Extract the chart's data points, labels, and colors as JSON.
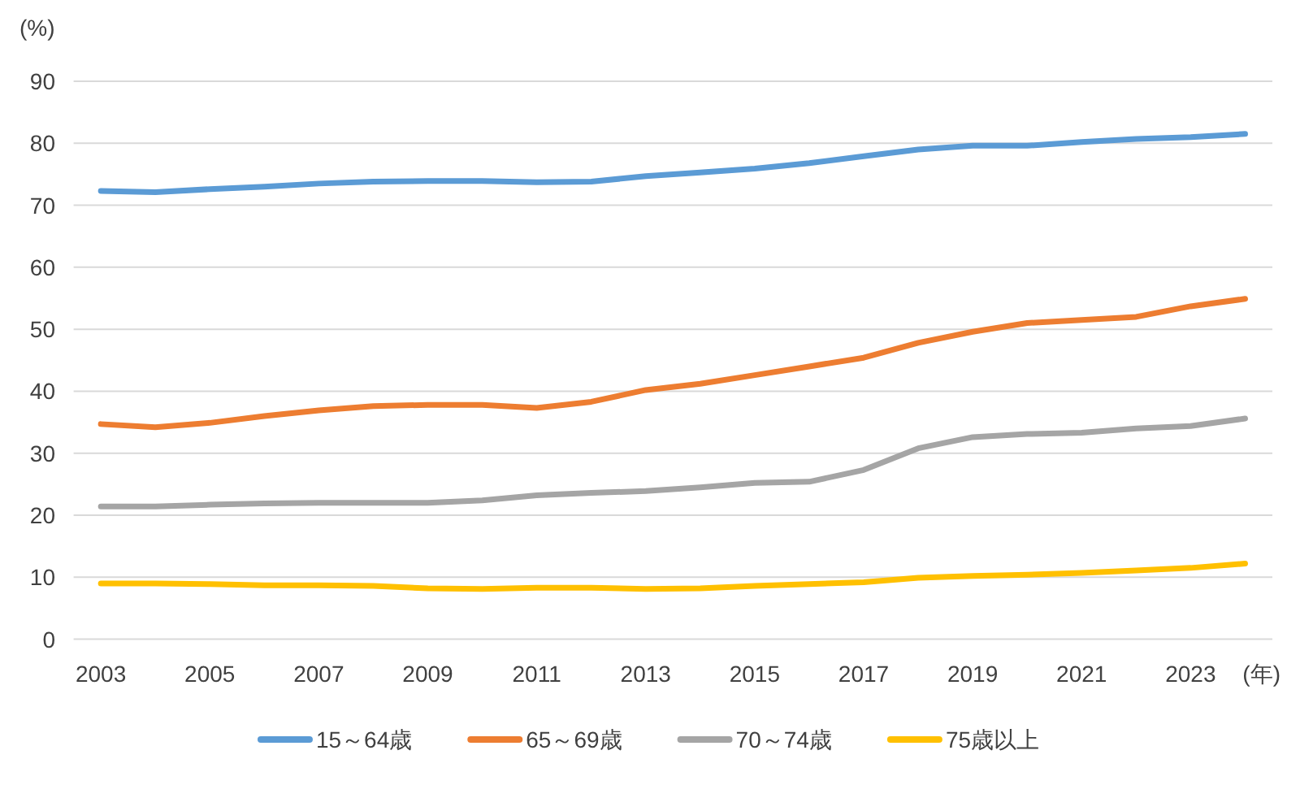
{
  "chart_data": {
    "type": "line",
    "ylabel": "(%)",
    "xlabel": "(年)",
    "categories": [
      "2003",
      null,
      "2005",
      null,
      "2007",
      null,
      "2009",
      null,
      "2011",
      null,
      "2013",
      null,
      "2015",
      null,
      "2017",
      null,
      "2019",
      null,
      "2021",
      null,
      "2023",
      null
    ],
    "ylim": [
      0,
      90
    ],
    "yticks": [
      0,
      10,
      20,
      30,
      40,
      50,
      60,
      70,
      80,
      90
    ],
    "grid": "y",
    "legend": "bottom",
    "marker": "none",
    "line_style": "solid",
    "series": [
      {
        "name": "15～64歳",
        "color": "#5b9bd5",
        "values": [
          72.3,
          72.1,
          72.6,
          73.0,
          73.5,
          73.8,
          73.9,
          73.9,
          73.7,
          73.8,
          74.7,
          75.3,
          75.9,
          76.8,
          77.9,
          79.0,
          79.6,
          79.6,
          80.2,
          80.7,
          81.0,
          81.5
        ]
      },
      {
        "name": "65～69歳",
        "color": "#ed7d31",
        "values": [
          34.7,
          34.2,
          34.9,
          36.0,
          36.9,
          37.6,
          37.8,
          37.8,
          37.3,
          38.3,
          40.2,
          41.2,
          42.6,
          44.0,
          45.4,
          47.8,
          49.6,
          51.0,
          51.5,
          52.0,
          53.7,
          54.9
        ]
      },
      {
        "name": "70～74歳",
        "color": "#a5a5a5",
        "values": [
          21.4,
          21.4,
          21.7,
          21.9,
          22.0,
          22.0,
          22.0,
          22.4,
          23.2,
          23.6,
          23.9,
          24.5,
          25.2,
          25.4,
          27.3,
          30.8,
          32.6,
          33.1,
          33.3,
          34.0,
          34.4,
          35.6
        ]
      },
      {
        "name": "75歳以上",
        "color": "#ffc000",
        "values": [
          9.0,
          9.0,
          8.9,
          8.7,
          8.7,
          8.6,
          8.2,
          8.1,
          8.3,
          8.3,
          8.1,
          8.2,
          8.6,
          8.9,
          9.2,
          9.9,
          10.2,
          10.4,
          10.7,
          11.1,
          11.5,
          12.2
        ]
      }
    ]
  }
}
